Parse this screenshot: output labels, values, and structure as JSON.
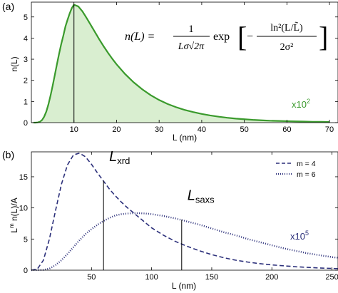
{
  "chart_data": [
    {
      "panel_label": "(a)",
      "type": "area",
      "xlabel": "L (nm)",
      "ylabel": "n(L)",
      "xlim": [
        0,
        72
      ],
      "ylim": [
        0,
        5.7
      ],
      "xticks": [
        10,
        20,
        30,
        40,
        50,
        60,
        70
      ],
      "yticks": [
        0,
        1,
        2,
        3,
        4,
        5
      ],
      "scale_note": {
        "text": "x10",
        "exp": "2"
      },
      "formula": {
        "lhs": "n(L) =",
        "num": "1",
        "den": "Lσ√2π",
        "exp_word": "exp",
        "inner_num": "ln²(L/L̃)",
        "inner_den": "2σ²"
      },
      "color": "#3a9a2c",
      "fill_color": "#d9eed0",
      "vertical_marker_x": 10,
      "series": [
        {
          "x": [
            0.5,
            1,
            1.5,
            2,
            2.5,
            3,
            3.5,
            4,
            4.5,
            5,
            5.5,
            6,
            6.5,
            7,
            7.5,
            8,
            8.5,
            9,
            9.5,
            10,
            11,
            12,
            13,
            14,
            15,
            16,
            17,
            18,
            19,
            20,
            22,
            24,
            26,
            28,
            30,
            32,
            34,
            36,
            38,
            40,
            42,
            44,
            46,
            48,
            50,
            52,
            54,
            56,
            58,
            60,
            62,
            64,
            66,
            68,
            70
          ],
          "values": [
            0,
            0,
            0.01,
            0.04,
            0.12,
            0.28,
            0.52,
            0.86,
            1.28,
            1.75,
            2.25,
            2.76,
            3.25,
            3.71,
            4.11,
            4.55,
            4.87,
            5.17,
            5.42,
            5.58,
            5.5,
            5.26,
            4.94,
            4.6,
            4.26,
            3.92,
            3.6,
            3.3,
            3.02,
            2.76,
            2.3,
            1.91,
            1.58,
            1.3,
            1.07,
            0.88,
            0.73,
            0.6,
            0.5,
            0.41,
            0.34,
            0.28,
            0.23,
            0.19,
            0.16,
            0.13,
            0.11,
            0.09,
            0.08,
            0.07,
            0.06,
            0.05,
            0.04,
            0.04,
            0.03
          ]
        }
      ]
    },
    {
      "panel_label": "(b)",
      "type": "line",
      "xlabel": "L (nm)",
      "ylabel": "L^m n(L)/A",
      "xlim": [
        0,
        255
      ],
      "ylim": [
        0,
        19
      ],
      "xticks": [
        50,
        100,
        150,
        200,
        250
      ],
      "yticks": [
        0,
        5,
        10,
        15
      ],
      "scale_note": {
        "text": "x10",
        "exp": "5"
      },
      "legend_position": "top-right",
      "color": "#2b2f7a",
      "annotations": [
        {
          "text": "L",
          "sub": "xrd",
          "x": 60
        },
        {
          "text": "L",
          "sub": "saxs",
          "x": 125
        }
      ],
      "series": [
        {
          "name": "m = 4",
          "style": "dashed",
          "x": [
            0,
            5,
            10,
            15,
            20,
            25,
            30,
            35,
            40,
            45,
            50,
            55,
            60,
            65,
            70,
            75,
            80,
            85,
            90,
            95,
            100,
            110,
            120,
            130,
            140,
            150,
            160,
            170,
            180,
            190,
            200,
            210,
            220,
            230,
            240,
            250,
            255
          ],
          "values": [
            0,
            0.2,
            1.6,
            5.0,
            9.5,
            13.8,
            16.9,
            18.5,
            18.8,
            18.2,
            17.0,
            15.6,
            14.3,
            13.0,
            11.9,
            10.9,
            10.0,
            9.2,
            8.4,
            7.6,
            6.8,
            5.6,
            4.6,
            3.8,
            3.1,
            2.5,
            2.0,
            1.6,
            1.3,
            1.05,
            0.85,
            0.7,
            0.55,
            0.45,
            0.35,
            0.28,
            0.25
          ]
        },
        {
          "name": "m = 6",
          "style": "dotted",
          "x": [
            0,
            10,
            15,
            20,
            25,
            30,
            35,
            40,
            45,
            50,
            55,
            60,
            65,
            70,
            75,
            80,
            85,
            90,
            95,
            100,
            110,
            120,
            130,
            140,
            150,
            160,
            170,
            180,
            190,
            200,
            210,
            220,
            230,
            240,
            250,
            255
          ],
          "values": [
            0,
            0.05,
            0.25,
            0.8,
            1.6,
            2.6,
            3.7,
            4.8,
            5.8,
            6.6,
            7.3,
            7.9,
            8.4,
            8.8,
            9.0,
            9.1,
            9.15,
            9.15,
            9.1,
            9.0,
            8.7,
            8.3,
            7.8,
            7.3,
            6.7,
            6.1,
            5.6,
            5.0,
            4.5,
            4.0,
            3.5,
            3.1,
            2.7,
            2.4,
            2.1,
            2.0
          ]
        }
      ]
    }
  ]
}
